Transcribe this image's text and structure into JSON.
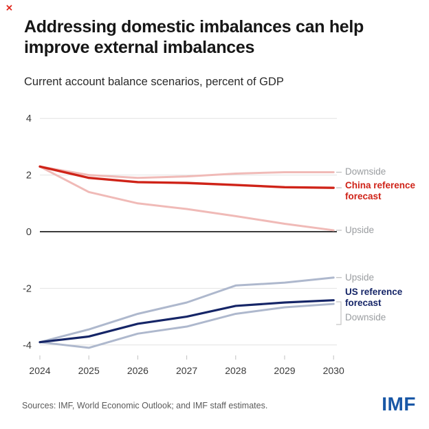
{
  "icons": {
    "close": "✕"
  },
  "header": {
    "title_line1": "Addressing domestic imbalances can help",
    "title_line2": "improve external imbalances",
    "subtitle": "Current account balance scenarios, percent of GDP"
  },
  "footer": {
    "sources": "Sources: IMF, World Economic Outlook; and IMF staff estimates.",
    "logo": "IMF"
  },
  "colors": {
    "china_reference": "#cf2318",
    "china_scenario": "#f0bab7",
    "us_reference": "#152567",
    "us_scenario": "#aeb8cd",
    "scenario_label": "#9a9da0",
    "grid": "#e2e2e2",
    "zero_line": "#1f1f1f",
    "tick": "#c0c0c0",
    "imf_blue": "#1857a6"
  },
  "chart_data": {
    "type": "line",
    "title": "Current account balance scenarios, percent of GDP",
    "xlabel": "",
    "ylabel": "percent of GDP",
    "x": [
      2024,
      2025,
      2026,
      2027,
      2028,
      2029,
      2030
    ],
    "yticks": [
      4,
      2,
      0,
      -2,
      -4
    ],
    "ylim": [
      -4.6,
      4.4
    ],
    "grid": true,
    "legend_position": "right-annotations",
    "series": [
      {
        "name": "china-downside",
        "label_lines": [
          "Downside"
        ],
        "values": [
          2.3,
          2.0,
          1.9,
          1.95,
          2.05,
          2.1,
          2.1
        ],
        "color": "#f0bab7",
        "width": 3,
        "label_color": "#9a9da0",
        "label_bold": false
      },
      {
        "name": "china-upside",
        "label_lines": [
          "Upside"
        ],
        "values": [
          2.3,
          1.4,
          1.0,
          0.8,
          0.55,
          0.28,
          0.05
        ],
        "color": "#f0bab7",
        "width": 3,
        "label_color": "#9a9da0",
        "label_bold": false
      },
      {
        "name": "china-reference",
        "label_lines": [
          "China reference",
          "forecast"
        ],
        "values": [
          2.3,
          1.9,
          1.75,
          1.72,
          1.65,
          1.57,
          1.55
        ],
        "color": "#cf2318",
        "width": 3.4,
        "label_color": "#cf2318",
        "label_bold": true
      },
      {
        "name": "us-upside",
        "label_lines": [
          "Upside"
        ],
        "values": [
          -3.9,
          -3.45,
          -2.9,
          -2.5,
          -1.9,
          -1.8,
          -1.62
        ],
        "color": "#aeb8cd",
        "width": 3,
        "label_color": "#9a9da0",
        "label_bold": false
      },
      {
        "name": "us-downside",
        "label_lines": [
          "Downside"
        ],
        "values": [
          -3.9,
          -4.1,
          -3.6,
          -3.35,
          -2.9,
          -2.67,
          -2.55
        ],
        "color": "#aeb8cd",
        "width": 3,
        "label_color": "#9a9da0",
        "label_bold": false
      },
      {
        "name": "us-reference",
        "label_lines": [
          "US reference",
          "forecast"
        ],
        "values": [
          -3.9,
          -3.7,
          -3.25,
          -3.0,
          -2.62,
          -2.5,
          -2.42
        ],
        "color": "#152567",
        "width": 3.2,
        "label_color": "#152567",
        "label_bold": true
      }
    ]
  }
}
